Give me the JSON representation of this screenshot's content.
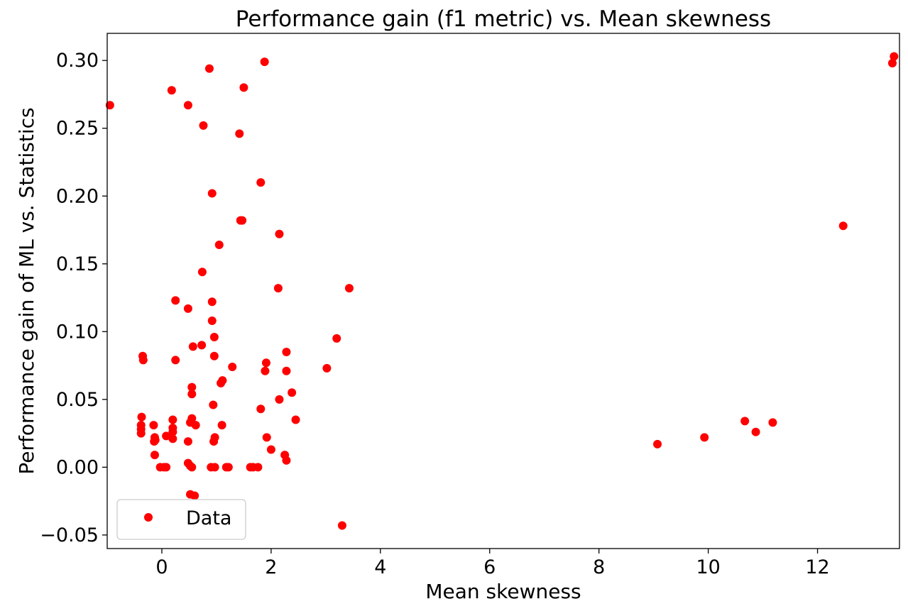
{
  "chart_data": {
    "type": "scatter",
    "title": "Performance gain (f1 metric) vs. Mean skewness",
    "xlabel": "Mean skewness",
    "ylabel": "Performance gain of ML vs. Statistics",
    "xlim": [
      -1.0,
      13.5
    ],
    "ylim": [
      -0.06,
      0.32
    ],
    "x_ticks": [
      0,
      2,
      4,
      6,
      8,
      10,
      12
    ],
    "x_tick_labels": [
      "0",
      "2",
      "4",
      "6",
      "8",
      "10",
      "12"
    ],
    "y_ticks": [
      -0.05,
      0.0,
      0.05,
      0.1,
      0.15,
      0.2,
      0.25,
      0.3
    ],
    "y_tick_labels": [
      "−0.05",
      "0.00",
      "0.05",
      "0.10",
      "0.15",
      "0.20",
      "0.25",
      "0.30"
    ],
    "grid": false,
    "legend_position": "lower-left",
    "marker_color": "#ff0000",
    "series": [
      {
        "name": "Data",
        "points": [
          [
            -0.95,
            0.267
          ],
          [
            0.18,
            0.278
          ],
          [
            0.48,
            0.267
          ],
          [
            0.87,
            0.294
          ],
          [
            1.88,
            0.299
          ],
          [
            1.5,
            0.28
          ],
          [
            0.76,
            0.252
          ],
          [
            1.42,
            0.246
          ],
          [
            0.92,
            0.202
          ],
          [
            1.81,
            0.21
          ],
          [
            1.44,
            0.182
          ],
          [
            1.47,
            0.182
          ],
          [
            2.15,
            0.172
          ],
          [
            1.05,
            0.164
          ],
          [
            0.74,
            0.144
          ],
          [
            2.13,
            0.132
          ],
          [
            3.43,
            0.132
          ],
          [
            0.25,
            0.123
          ],
          [
            0.92,
            0.122
          ],
          [
            0.48,
            0.117
          ],
          [
            0.92,
            0.108
          ],
          [
            0.96,
            0.096
          ],
          [
            3.2,
            0.095
          ],
          [
            0.57,
            0.089
          ],
          [
            0.73,
            0.09
          ],
          [
            2.28,
            0.085
          ],
          [
            -0.35,
            0.082
          ],
          [
            -0.34,
            0.079
          ],
          [
            0.96,
            0.082
          ],
          [
            0.25,
            0.079
          ],
          [
            1.91,
            0.077
          ],
          [
            1.29,
            0.074
          ],
          [
            1.89,
            0.071
          ],
          [
            2.28,
            0.071
          ],
          [
            3.02,
            0.073
          ],
          [
            1.11,
            0.064
          ],
          [
            1.08,
            0.062
          ],
          [
            0.55,
            0.059
          ],
          [
            0.55,
            0.054
          ],
          [
            2.38,
            0.055
          ],
          [
            2.15,
            0.05
          ],
          [
            0.94,
            0.046
          ],
          [
            1.81,
            0.043
          ],
          [
            -0.37,
            0.037
          ],
          [
            0.2,
            0.035
          ],
          [
            0.55,
            0.036
          ],
          [
            0.52,
            0.033
          ],
          [
            2.45,
            0.035
          ],
          [
            0.62,
            0.031
          ],
          [
            1.1,
            0.031
          ],
          [
            -0.38,
            0.031
          ],
          [
            -0.38,
            0.028
          ],
          [
            -0.38,
            0.025
          ],
          [
            -0.15,
            0.031
          ],
          [
            0.2,
            0.029
          ],
          [
            0.2,
            0.026
          ],
          [
            0.2,
            0.021
          ],
          [
            0.08,
            0.023
          ],
          [
            -0.13,
            0.022
          ],
          [
            -0.14,
            0.019
          ],
          [
            -0.12,
            0.02
          ],
          [
            0.97,
            0.022
          ],
          [
            1.92,
            0.022
          ],
          [
            0.95,
            0.019
          ],
          [
            0.48,
            0.019
          ],
          [
            2.0,
            0.013
          ],
          [
            -0.13,
            0.009
          ],
          [
            2.25,
            0.009
          ],
          [
            2.28,
            0.005
          ],
          [
            0.48,
            0.003
          ],
          [
            0.52,
            0.001
          ],
          [
            0.55,
            0.0
          ],
          [
            -0.03,
            0.0
          ],
          [
            0.04,
            0.0
          ],
          [
            0.08,
            0.0
          ],
          [
            0.9,
            0.0
          ],
          [
            0.97,
            0.0
          ],
          [
            1.18,
            0.0
          ],
          [
            1.22,
            0.0
          ],
          [
            1.62,
            0.0
          ],
          [
            1.67,
            0.0
          ],
          [
            1.76,
            0.0
          ],
          [
            0.52,
            -0.02
          ],
          [
            0.6,
            -0.021
          ],
          [
            3.3,
            -0.043
          ],
          [
            9.07,
            0.017
          ],
          [
            9.93,
            0.022
          ],
          [
            10.67,
            0.034
          ],
          [
            10.87,
            0.026
          ],
          [
            11.18,
            0.033
          ],
          [
            12.47,
            0.178
          ],
          [
            13.37,
            0.298
          ],
          [
            13.4,
            0.303
          ]
        ]
      }
    ]
  }
}
